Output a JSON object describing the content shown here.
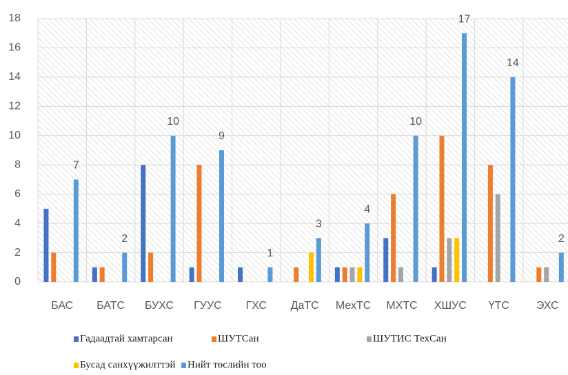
{
  "chart_data": {
    "type": "bar",
    "categories": [
      "БАС",
      "БАТС",
      "БУХС",
      "ГУУС",
      "ГХС",
      "ДаТС",
      "МехТС",
      "МХТС",
      "ХШУС",
      "ҮТС",
      "ЭХС"
    ],
    "series": [
      {
        "name": "Гадаадтай хамтарсан",
        "color": "#4472c4",
        "values": [
          5,
          1,
          8,
          1,
          1,
          0,
          1,
          3,
          1,
          0,
          0
        ]
      },
      {
        "name": "ШУТСан",
        "color": "#ed7d31",
        "values": [
          2,
          1,
          2,
          8,
          0,
          1,
          1,
          6,
          10,
          8,
          1
        ]
      },
      {
        "name": "ШУТИС ТехСан",
        "color": "#a5a5a5",
        "values": [
          0,
          0,
          0,
          0,
          0,
          0,
          1,
          1,
          3,
          6,
          1
        ]
      },
      {
        "name": "Бусад санхүүжилттэй",
        "color": "#ffc000",
        "values": [
          0,
          0,
          0,
          0,
          0,
          2,
          1,
          0,
          3,
          0,
          0
        ]
      },
      {
        "name": "Нийт төслийн тоо",
        "color": "#5b9bd5",
        "values": [
          7,
          2,
          10,
          9,
          1,
          3,
          4,
          10,
          17,
          14,
          2
        ],
        "data_labels": true
      }
    ],
    "ylim": [
      0,
      18
    ],
    "yticks": [
      0,
      2,
      4,
      6,
      8,
      10,
      12,
      14,
      16,
      18
    ],
    "grid": true,
    "legend": "bottom"
  }
}
